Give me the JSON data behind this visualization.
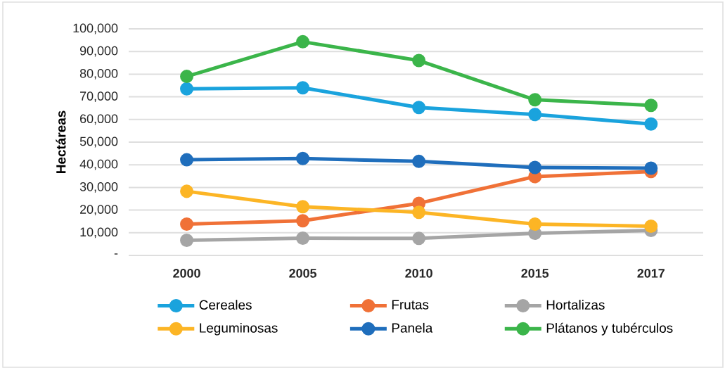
{
  "chart_data": {
    "type": "line",
    "ylabel": "Hectáreas",
    "categories": [
      "2000",
      "2005",
      "2010",
      "2015",
      "2017"
    ],
    "series": [
      {
        "name": "Cereales",
        "color": "#1aa3dd",
        "values": [
          73500,
          74000,
          65300,
          62200,
          58000
        ]
      },
      {
        "name": "Frutas",
        "color": "#f07137",
        "values": [
          13800,
          15300,
          23000,
          34800,
          37000
        ]
      },
      {
        "name": "Hortalizas",
        "color": "#a5a5a5",
        "values": [
          6700,
          7600,
          7500,
          9800,
          11000
        ]
      },
      {
        "name": "Leguminosas",
        "color": "#fcb525",
        "values": [
          28300,
          21500,
          19000,
          13800,
          12900
        ]
      },
      {
        "name": "Panela",
        "color": "#1f6ebc",
        "values": [
          42200,
          42800,
          41500,
          38800,
          38500
        ]
      },
      {
        "name": "Plátanos y tubérculos",
        "color": "#3bb54a",
        "values": [
          79000,
          94300,
          86000,
          68700,
          66200
        ]
      }
    ],
    "ylim": [
      0,
      100000
    ],
    "yticks": [
      {
        "value": 0,
        "label": "-"
      },
      {
        "value": 10000,
        "label": "10,000"
      },
      {
        "value": 20000,
        "label": "20,000"
      },
      {
        "value": 30000,
        "label": "30,000"
      },
      {
        "value": 40000,
        "label": "40,000"
      },
      {
        "value": 50000,
        "label": "50,000"
      },
      {
        "value": 60000,
        "label": "60,000"
      },
      {
        "value": 70000,
        "label": "70,000"
      },
      {
        "value": 80000,
        "label": "80,000"
      },
      {
        "value": 90000,
        "label": "90,000"
      },
      {
        "value": 100000,
        "label": "100,000"
      }
    ],
    "grid": "y",
    "legend": "bottom",
    "marker": "circle",
    "line_style": "solid"
  }
}
